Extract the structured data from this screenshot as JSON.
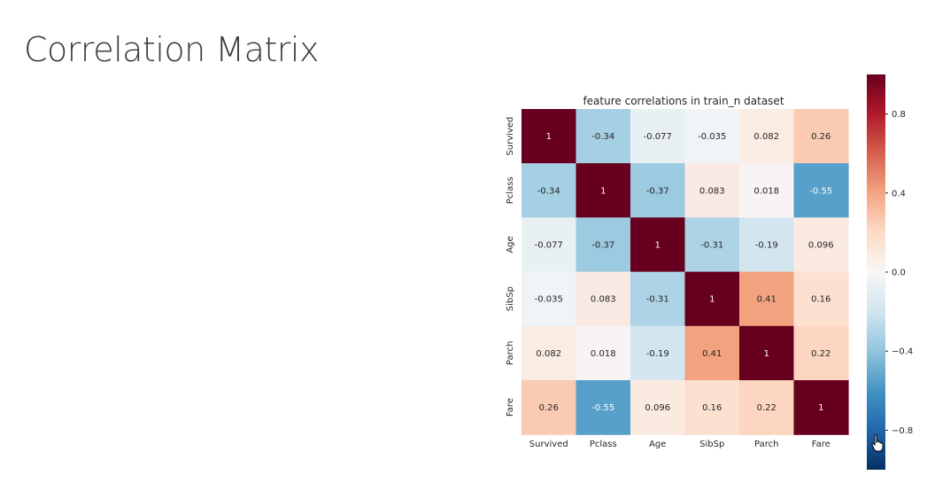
{
  "slide": {
    "title": "Correlation Matrix"
  },
  "chart_data": {
    "type": "heatmap",
    "title": "feature correlations in train_n dataset",
    "x_labels": [
      "Survived",
      "Pclass",
      "Age",
      "SibSp",
      "Parch",
      "Fare"
    ],
    "y_labels": [
      "Survived",
      "Pclass",
      "Age",
      "SibSp",
      "Parch",
      "Fare"
    ],
    "values": [
      [
        1,
        -0.34,
        -0.077,
        -0.035,
        0.082,
        0.26
      ],
      [
        -0.34,
        1,
        -0.37,
        0.083,
        0.018,
        -0.55
      ],
      [
        -0.077,
        -0.37,
        1,
        -0.31,
        -0.19,
        0.096
      ],
      [
        -0.035,
        0.083,
        -0.31,
        1,
        0.41,
        0.16
      ],
      [
        0.082,
        0.018,
        -0.19,
        0.41,
        1,
        0.22
      ],
      [
        0.26,
        -0.55,
        0.096,
        0.16,
        0.22,
        1
      ]
    ],
    "cell_text": [
      [
        "1",
        "-0.34",
        "-0.077",
        "-0.035",
        "0.082",
        "0.26"
      ],
      [
        "-0.34",
        "1",
        "-0.37",
        "0.083",
        "0.018",
        "-0.55"
      ],
      [
        "-0.077",
        "-0.37",
        "1",
        "-0.31",
        "-0.19",
        "0.096"
      ],
      [
        "-0.035",
        "0.083",
        "-0.31",
        "1",
        "0.41",
        "0.16"
      ],
      [
        "0.082",
        "0.018",
        "-0.19",
        "0.41",
        "1",
        "0.22"
      ],
      [
        "0.26",
        "-0.55",
        "0.096",
        "0.16",
        "0.22",
        "1"
      ]
    ],
    "colormap": "RdBu_r",
    "colorbar": {
      "range": [
        -1,
        1
      ],
      "ticks": [
        0.8,
        0.4,
        0.0,
        -0.4,
        -0.8
      ],
      "tick_labels": [
        "0.8",
        "0.4",
        "0.0",
        "−0.4",
        "−0.8"
      ]
    }
  }
}
